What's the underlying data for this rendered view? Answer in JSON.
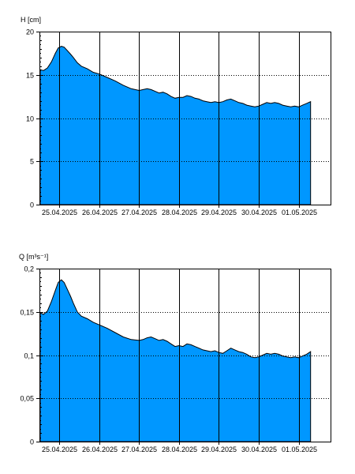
{
  "chart_data": [
    {
      "type": "area",
      "ylabel": "H [cm]",
      "ylim": [
        0,
        20
      ],
      "y_ticks": [
        "0",
        "5",
        "10",
        "15",
        "20"
      ],
      "y_tick_values": [
        0,
        5,
        10,
        15,
        20
      ],
      "x_range": [
        24.5,
        31.8
      ],
      "x_tick_labels": [
        "25.04.2025",
        "26.04.2025",
        "27.04.2025",
        "28.04.2025",
        "29.04.2025",
        "30.04.2025",
        "01.05.2025"
      ],
      "x_tick_values": [
        25,
        26,
        27,
        28,
        29,
        30,
        31
      ],
      "grid": true,
      "fill_color": "#0097FF",
      "series": [
        {
          "x": [
            24.52,
            24.6,
            24.7,
            24.8,
            24.9,
            24.97,
            25.05,
            25.12,
            25.2,
            25.28,
            25.35,
            25.45,
            25.55,
            25.7,
            25.85,
            26.0,
            26.2,
            26.4,
            26.6,
            26.8,
            27.0,
            27.1,
            27.2,
            27.3,
            27.4,
            27.5,
            27.6,
            27.7,
            27.8,
            27.9,
            28.0,
            28.1,
            28.2,
            28.3,
            28.4,
            28.5,
            28.6,
            28.7,
            28.8,
            28.9,
            29.0,
            29.1,
            29.2,
            29.3,
            29.4,
            29.5,
            29.6,
            29.7,
            29.8,
            29.9,
            30.0,
            30.1,
            30.2,
            30.3,
            30.4,
            30.5,
            30.6,
            30.7,
            30.8,
            30.9,
            31.0,
            31.1,
            31.2,
            31.3
          ],
          "values": [
            15.6,
            15.5,
            15.8,
            16.5,
            17.5,
            18.1,
            18.3,
            18.2,
            17.8,
            17.4,
            17.0,
            16.4,
            16.0,
            15.7,
            15.3,
            15.1,
            14.7,
            14.3,
            13.8,
            13.4,
            13.2,
            13.3,
            13.4,
            13.3,
            13.1,
            12.9,
            13.0,
            12.8,
            12.5,
            12.3,
            12.4,
            12.4,
            12.6,
            12.5,
            12.3,
            12.2,
            12.0,
            11.9,
            11.8,
            11.9,
            11.8,
            11.9,
            12.1,
            12.2,
            12.0,
            11.8,
            11.7,
            11.5,
            11.4,
            11.3,
            11.4,
            11.6,
            11.8,
            11.7,
            11.8,
            11.7,
            11.5,
            11.4,
            11.3,
            11.4,
            11.3,
            11.5,
            11.7,
            11.9
          ]
        }
      ]
    },
    {
      "type": "area",
      "ylabel": "Q [m³s⁻¹]",
      "ylim": [
        0,
        0.2
      ],
      "y_ticks": [
        "0",
        "0,05",
        "0,1",
        "0,15",
        "0,2"
      ],
      "y_tick_values": [
        0,
        0.05,
        0.1,
        0.15,
        0.2
      ],
      "x_range": [
        24.5,
        31.8
      ],
      "x_tick_labels": [
        "25.04.2025",
        "26.04.2025",
        "27.04.2025",
        "28.04.2025",
        "29.04.2025",
        "30.04.2025",
        "01.05.2025"
      ],
      "x_tick_values": [
        25,
        26,
        27,
        28,
        29,
        30,
        31
      ],
      "grid": true,
      "fill_color": "#0097FF",
      "series": [
        {
          "x": [
            24.52,
            24.6,
            24.7,
            24.8,
            24.9,
            24.97,
            25.05,
            25.12,
            25.2,
            25.28,
            25.35,
            25.45,
            25.55,
            25.7,
            25.85,
            26.0,
            26.2,
            26.4,
            26.6,
            26.8,
            27.0,
            27.1,
            27.2,
            27.3,
            27.4,
            27.5,
            27.6,
            27.7,
            27.8,
            27.9,
            28.0,
            28.1,
            28.2,
            28.3,
            28.4,
            28.5,
            28.6,
            28.7,
            28.8,
            28.9,
            29.0,
            29.1,
            29.2,
            29.3,
            29.4,
            29.5,
            29.6,
            29.7,
            29.8,
            29.9,
            30.0,
            30.1,
            30.2,
            30.3,
            30.4,
            30.5,
            30.6,
            30.7,
            30.8,
            30.9,
            31.0,
            31.1,
            31.2,
            31.3
          ],
          "values": [
            0.149,
            0.147,
            0.151,
            0.162,
            0.175,
            0.184,
            0.187,
            0.184,
            0.176,
            0.168,
            0.16,
            0.15,
            0.145,
            0.142,
            0.138,
            0.135,
            0.131,
            0.126,
            0.121,
            0.118,
            0.117,
            0.118,
            0.12,
            0.121,
            0.119,
            0.117,
            0.118,
            0.116,
            0.113,
            0.11,
            0.111,
            0.11,
            0.113,
            0.112,
            0.11,
            0.108,
            0.106,
            0.105,
            0.104,
            0.105,
            0.103,
            0.102,
            0.105,
            0.108,
            0.106,
            0.104,
            0.103,
            0.101,
            0.098,
            0.097,
            0.098,
            0.1,
            0.102,
            0.101,
            0.102,
            0.101,
            0.099,
            0.098,
            0.097,
            0.098,
            0.097,
            0.099,
            0.101,
            0.104
          ]
        }
      ]
    }
  ]
}
